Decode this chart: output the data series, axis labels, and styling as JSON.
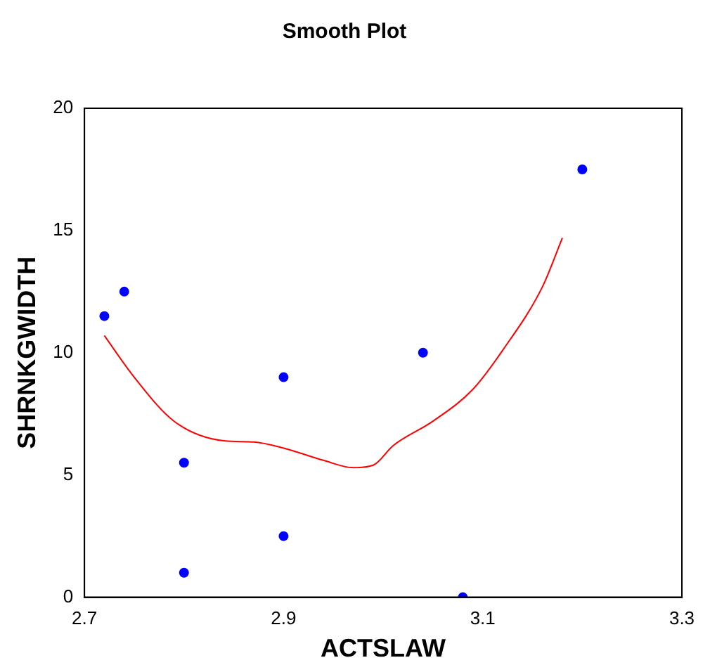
{
  "chart_data": {
    "type": "scatter",
    "title": "Smooth Plot",
    "xlabel": "ACTSLAW",
    "ylabel": "SHRNKGWIDTH",
    "xlim": [
      2.7,
      3.3
    ],
    "xticks": [
      2.7,
      2.9,
      3.1,
      3.3
    ],
    "ylim": [
      0,
      20
    ],
    "yticks": [
      0,
      5,
      10,
      15,
      20
    ],
    "grid": false,
    "legend": false,
    "series": [
      {
        "color": "#0000ff",
        "marker": "circle",
        "x": [
          2.72,
          2.74,
          2.8,
          2.8,
          2.9,
          2.9,
          3.04,
          3.08,
          3.2
        ],
        "values": [
          11.5,
          12.5,
          5.5,
          1,
          9,
          2.5,
          10,
          0,
          17.5
        ]
      },
      {
        "type": "line",
        "marker": "none",
        "color": "#ff0000",
        "x": [
          2.72,
          2.75,
          2.79,
          2.84,
          2.87,
          2.9,
          2.94,
          2.97,
          2.99,
          3.01,
          3.05,
          3.09,
          3.12,
          3.16,
          3.18
        ],
        "values": [
          10.7,
          9,
          7.2,
          6.4,
          6.35,
          6.1,
          5.6,
          5.3,
          5.4,
          6.2,
          7.2,
          8.5,
          10.1,
          12.7,
          14.7
        ]
      }
    ]
  }
}
